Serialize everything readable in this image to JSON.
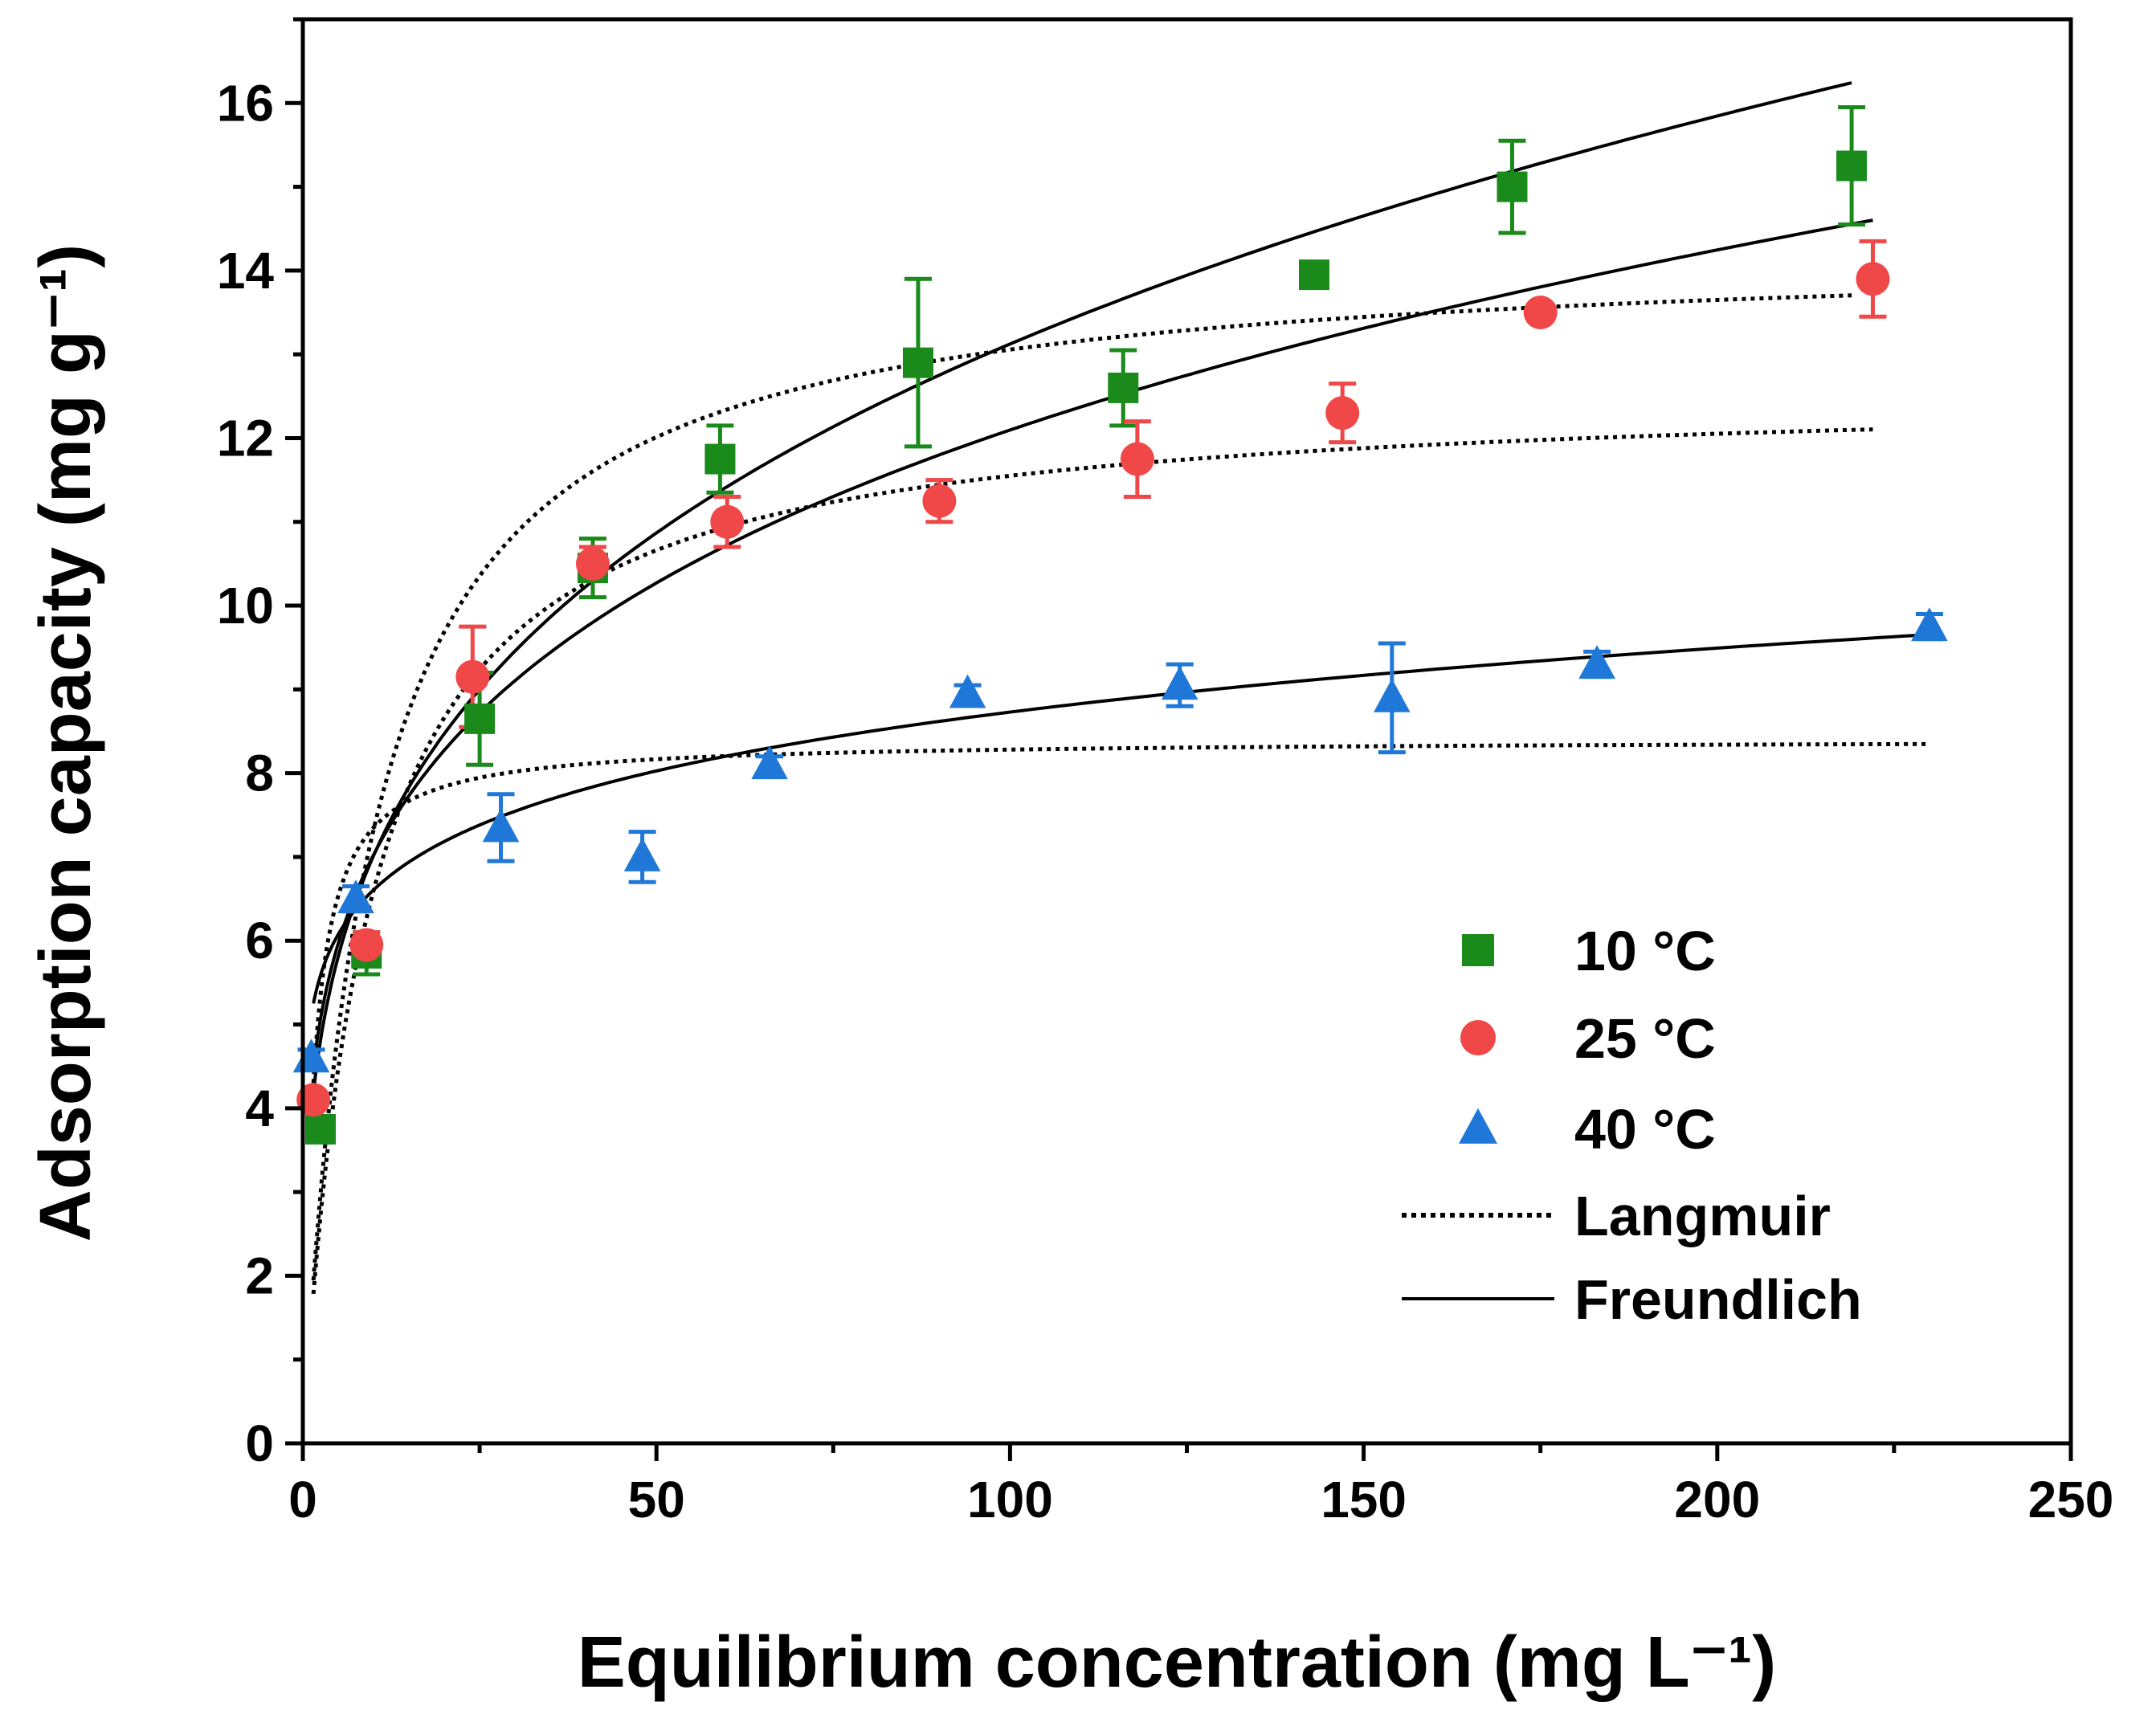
{
  "chart_data": {
    "type": "scatter",
    "title": "",
    "xlabel": "Equilibrium concentration (mg L⁻¹)",
    "ylabel": "Adsorption capacity (mg g⁻¹)",
    "xlim": [
      0,
      250
    ],
    "ylim": [
      0,
      17
    ],
    "x_ticks": [
      0,
      50,
      100,
      150,
      200,
      250
    ],
    "y_ticks": [
      0,
      2,
      4,
      6,
      8,
      10,
      12,
      14,
      16
    ],
    "grid": false,
    "legend_position": "bottom-right",
    "series": [
      {
        "name": "10 °C",
        "marker": "square",
        "color": "#1a8a1a",
        "x": [
          2.5,
          9,
          25,
          41,
          59,
          87,
          116,
          143,
          171,
          219
        ],
        "y": [
          3.75,
          5.85,
          8.65,
          10.45,
          11.75,
          12.9,
          12.6,
          13.95,
          15.0,
          15.25
        ],
        "err": [
          0.1,
          0.25,
          0.55,
          0.35,
          0.4,
          1.0,
          0.45,
          0.1,
          0.55,
          0.7
        ]
      },
      {
        "name": "25 °C",
        "marker": "circle",
        "color": "#f04848",
        "x": [
          1.5,
          9,
          24,
          41,
          60,
          90,
          118,
          147,
          175,
          222
        ],
        "y": [
          4.1,
          5.95,
          9.15,
          10.5,
          11.0,
          11.25,
          11.75,
          12.3,
          13.5,
          13.9
        ],
        "err": [
          0.1,
          0.15,
          0.6,
          0.2,
          0.3,
          0.25,
          0.45,
          0.35,
          0.1,
          0.45
        ]
      },
      {
        "name": "40 °C",
        "marker": "triangle",
        "color": "#1f78d8",
        "x": [
          1.2,
          7.5,
          28,
          48,
          66,
          94,
          124,
          154,
          183,
          230
        ],
        "y": [
          4.6,
          6.5,
          7.35,
          7.0,
          8.1,
          8.95,
          9.05,
          8.9,
          9.3,
          9.75
        ],
        "err": [
          0.1,
          0.15,
          0.4,
          0.3,
          0.1,
          0.1,
          0.25,
          0.65,
          0.15,
          0.15
        ]
      }
    ],
    "fits": [
      {
        "model": "Langmuir",
        "style": "dotted",
        "for": "10 °C",
        "qmax": 14.3,
        "KL": 0.105,
        "x_range": [
          1.5,
          219
        ]
      },
      {
        "model": "Langmuir",
        "style": "dotted",
        "for": "25 °C",
        "qmax": 12.6,
        "KL": 0.11,
        "x_range": [
          1.5,
          222
        ]
      },
      {
        "model": "Langmuir",
        "style": "dotted",
        "for": "40 °C",
        "qmax": 8.4,
        "KL": 0.7,
        "x_range": [
          1.5,
          230
        ]
      },
      {
        "model": "Freundlich",
        "style": "solid",
        "for": "10 °C",
        "KF": 3.75,
        "n_inv": 0.272,
        "x_range": [
          1.5,
          219
        ]
      },
      {
        "model": "Freundlich",
        "style": "solid",
        "for": "25 °C",
        "KF": 4.08,
        "n_inv": 0.236,
        "x_range": [
          1.5,
          222
        ]
      },
      {
        "model": "Freundlich",
        "style": "solid",
        "for": "40 °C",
        "KF": 5.0,
        "n_inv": 0.121,
        "x_range": [
          1.5,
          230
        ]
      }
    ],
    "legend": [
      {
        "label": "10 °C",
        "kind": "square",
        "color": "#1a8a1a"
      },
      {
        "label": "25 °C",
        "kind": "circle",
        "color": "#f04848"
      },
      {
        "label": "40 °C",
        "kind": "triangle",
        "color": "#1f78d8"
      },
      {
        "label": "Langmuir",
        "kind": "dotted-line",
        "color": "#000000"
      },
      {
        "label": "Freundlich",
        "kind": "solid-line",
        "color": "#000000"
      }
    ]
  }
}
